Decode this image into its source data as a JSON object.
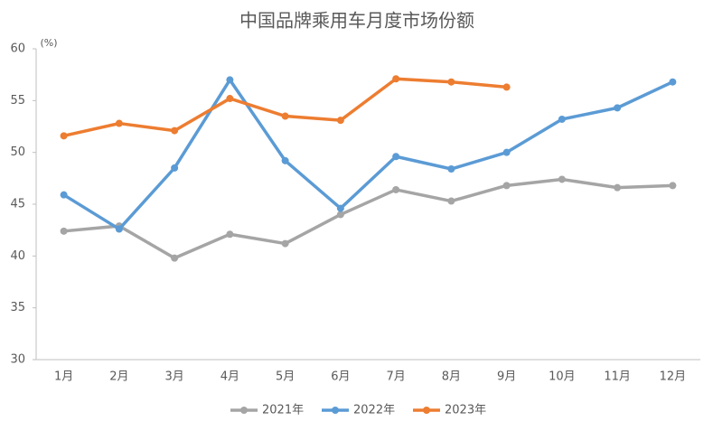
{
  "chart_data": {
    "type": "line",
    "title": "中国品牌乘用车月度市场份额",
    "y_label": "(%)",
    "categories": [
      "1月",
      "2月",
      "3月",
      "4月",
      "5月",
      "6月",
      "7月",
      "8月",
      "9月",
      "10月",
      "11月",
      "12月"
    ],
    "series": [
      {
        "name": "2021年",
        "color": "#a5a5a5",
        "values": [
          42.4,
          42.9,
          39.8,
          42.1,
          41.2,
          44.0,
          46.4,
          45.3,
          46.8,
          47.4,
          46.6,
          46.8
        ]
      },
      {
        "name": "2022年",
        "color": "#5b9bd5",
        "values": [
          45.9,
          42.6,
          48.5,
          57.0,
          49.2,
          44.6,
          49.6,
          48.4,
          50.0,
          53.2,
          54.3,
          56.8
        ]
      },
      {
        "name": "2023年",
        "color": "#ed7d31",
        "values": [
          51.6,
          52.8,
          52.1,
          55.2,
          53.5,
          53.1,
          57.1,
          56.8,
          56.3,
          null,
          null,
          null
        ]
      }
    ],
    "ylim": [
      30,
      60
    ],
    "yticks": [
      30,
      35,
      40,
      45,
      50,
      55,
      60
    ],
    "grid": false,
    "legend": "bottom"
  }
}
